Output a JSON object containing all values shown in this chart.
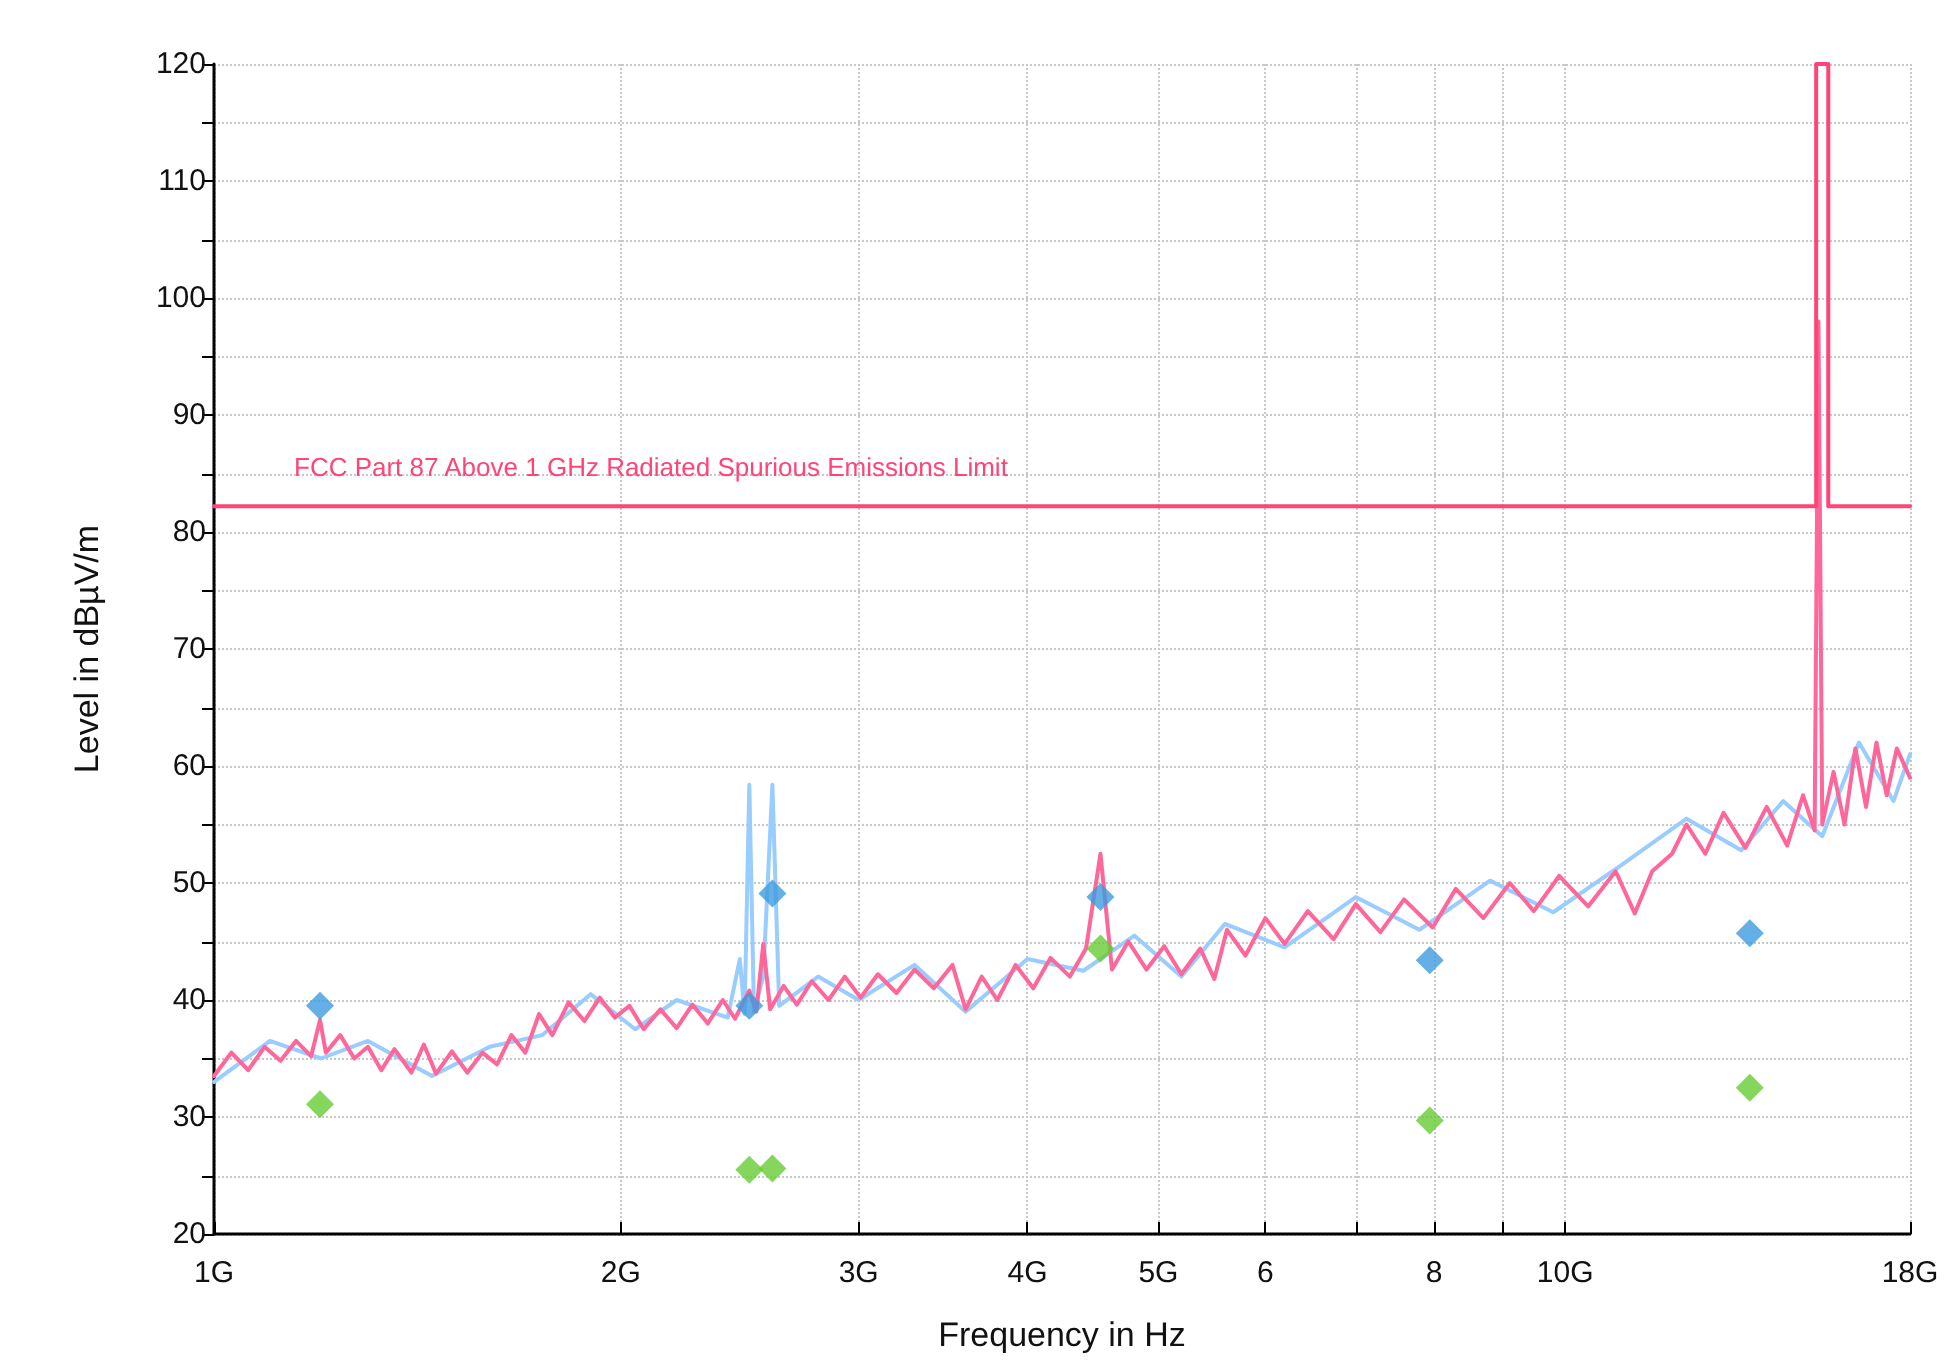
{
  "chart_data": {
    "type": "line",
    "xlabel": "Frequency in Hz",
    "ylabel": "Level in dBµV/m",
    "log": "x",
    "grid": true,
    "xlim": [
      1,
      18
    ],
    "xticks": [
      {
        "value": 1,
        "label": "1G"
      },
      {
        "value": 2,
        "label": "2G"
      },
      {
        "value": 3,
        "label": "3G"
      },
      {
        "value": 4,
        "label": "4G"
      },
      {
        "value": 5,
        "label": "5G"
      },
      6,
      {
        "value": 7,
        "label": null
      },
      8,
      {
        "value": 9,
        "label": null
      },
      {
        "value": 10,
        "label": "10G"
      },
      {
        "value": 18,
        "label": "18G"
      }
    ],
    "ylim": [
      20,
      120
    ],
    "yticks": [
      20,
      {
        "value": 25,
        "label": null
      },
      30,
      {
        "value": 35,
        "label": null
      },
      40,
      {
        "value": 45,
        "label": null
      },
      50,
      {
        "value": 55,
        "label": null
      },
      60,
      {
        "value": 65,
        "label": null
      },
      70,
      {
        "value": 75,
        "label": null
      },
      80,
      {
        "value": 85,
        "label": null
      },
      90,
      {
        "value": 95,
        "label": null
      },
      100,
      {
        "value": 105,
        "label": null
      },
      110,
      {
        "value": 115,
        "label": null
      },
      120
    ],
    "series": [
      {
        "marker": "none",
        "line_style": "solid",
        "color": "#99ccff",
        "x": [
          1.0,
          1.1,
          1.2,
          1.3,
          1.45,
          1.6,
          1.75,
          1.9,
          2.05,
          2.2,
          2.4,
          2.45,
          2.47,
          2.49,
          2.51,
          2.55,
          2.59,
          2.62,
          2.8,
          3.0,
          3.3,
          3.6,
          4.0,
          4.4,
          4.8,
          5.2,
          5.6,
          6.2,
          7.0,
          7.8,
          8.8,
          9.8,
          11.0,
          12.3,
          13.5,
          14.5,
          15.5,
          16.5,
          17.5,
          18.0
        ],
        "values": [
          33.0,
          36.5,
          35.0,
          36.5,
          33.5,
          36.0,
          37.0,
          40.5,
          37.5,
          40.0,
          38.5,
          43.5,
          38.8,
          58.4,
          39.0,
          42.0,
          58.4,
          39.5,
          42.0,
          40.0,
          43.0,
          39.0,
          43.5,
          42.5,
          45.5,
          42.0,
          46.5,
          44.5,
          48.8,
          46.0,
          50.2,
          47.5,
          51.5,
          55.5,
          52.8,
          57.0,
          54.0,
          62.0,
          57.0,
          61.0
        ]
      },
      {
        "marker": "none",
        "line_style": "solid",
        "color": "#ff6699",
        "x": [
          1.0,
          1.03,
          1.06,
          1.09,
          1.12,
          1.15,
          1.18,
          1.198,
          1.21,
          1.24,
          1.27,
          1.3,
          1.33,
          1.36,
          1.4,
          1.43,
          1.46,
          1.5,
          1.54,
          1.58,
          1.62,
          1.66,
          1.7,
          1.74,
          1.78,
          1.83,
          1.88,
          1.93,
          1.98,
          2.03,
          2.08,
          2.14,
          2.2,
          2.26,
          2.32,
          2.38,
          2.43,
          2.49,
          2.52,
          2.55,
          2.58,
          2.64,
          2.7,
          2.77,
          2.85,
          2.93,
          3.01,
          3.1,
          3.2,
          3.3,
          3.41,
          3.52,
          3.6,
          3.7,
          3.8,
          3.92,
          4.04,
          4.16,
          4.3,
          4.42,
          4.53,
          4.62,
          4.75,
          4.9,
          5.05,
          5.2,
          5.37,
          5.5,
          5.62,
          5.8,
          6.0,
          6.2,
          6.45,
          6.74,
          7.0,
          7.3,
          7.6,
          7.98,
          8.3,
          8.7,
          9.1,
          9.48,
          9.9,
          10.4,
          10.9,
          11.26,
          11.6,
          12.0,
          12.3,
          12.7,
          13.1,
          13.6,
          14.1,
          14.6,
          15.0,
          15.3,
          15.4,
          15.5,
          15.8,
          16.1,
          16.4,
          16.7,
          17.0,
          17.3,
          17.6,
          18.0
        ],
        "values": [
          33.5,
          35.5,
          34.0,
          36.0,
          34.8,
          36.5,
          35.2,
          38.3,
          35.5,
          37.0,
          35.0,
          36.0,
          34.0,
          35.8,
          33.8,
          36.2,
          33.7,
          35.6,
          33.8,
          35.5,
          34.5,
          37.0,
          35.5,
          38.8,
          37.0,
          39.8,
          38.2,
          40.2,
          38.5,
          39.5,
          37.5,
          39.2,
          37.6,
          39.6,
          38.0,
          40.0,
          38.4,
          40.8,
          39.0,
          44.8,
          39.2,
          41.2,
          39.6,
          41.6,
          40.0,
          42.0,
          40.2,
          42.2,
          40.6,
          42.6,
          41.0,
          43.0,
          39.2,
          42.0,
          40.0,
          43.0,
          41.0,
          43.6,
          42.0,
          44.4,
          52.5,
          42.6,
          45.0,
          42.6,
          44.6,
          42.2,
          44.4,
          41.8,
          46.0,
          43.8,
          47.0,
          44.8,
          47.6,
          45.2,
          48.2,
          45.8,
          48.6,
          46.2,
          49.5,
          47.0,
          50.0,
          47.6,
          50.6,
          48.0,
          51.0,
          47.4,
          51.0,
          52.5,
          55.0,
          52.5,
          56.0,
          53.0,
          56.5,
          53.2,
          57.5,
          54.5,
          98.0,
          55.0,
          59.5,
          55.0,
          61.5,
          56.5,
          62.0,
          57.5,
          61.5,
          59.0
        ]
      },
      {
        "marker": "none",
        "line_style": "solid",
        "color": "#ff4477",
        "name": "FCC Part 87 Above 1 GHz Radiated Spurious Emissions Limit",
        "x": [
          1,
          15.34,
          15.34,
          15.66,
          15.66,
          18
        ],
        "values": [
          82.2,
          82.2,
          120,
          120,
          82.2,
          82.2
        ]
      },
      {
        "type": "scatter",
        "marker": "diamond",
        "color": "#3d9be0",
        "x": [
          1.198,
          2.49,
          2.59,
          4.53,
          7.94,
          13.7
        ],
        "values": [
          39.5,
          39.5,
          49.1,
          48.8,
          43.4,
          45.7
        ]
      },
      {
        "type": "scatter",
        "marker": "diamond",
        "color": "#66cc33",
        "x": [
          1.198,
          2.49,
          2.59,
          4.53,
          7.94,
          13.7
        ],
        "values": [
          31.1,
          25.5,
          25.6,
          44.4,
          29.7,
          32.5
        ]
      }
    ]
  }
}
